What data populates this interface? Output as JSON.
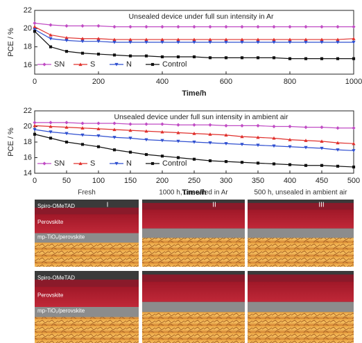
{
  "chart_data": [
    {
      "type": "line",
      "title": "Unsealed device under full sun intensity in Ar",
      "x_label": "Time/h",
      "y_label": "PCE / %",
      "x": [
        0,
        50,
        100,
        150,
        200,
        250,
        300,
        350,
        400,
        450,
        500,
        550,
        600,
        650,
        700,
        750,
        800,
        850,
        900,
        950,
        1000
      ],
      "xlim": [
        0,
        1000
      ],
      "xticks": [
        0,
        200,
        400,
        600,
        800,
        1000
      ],
      "ylim": [
        15,
        22
      ],
      "yticks": [
        16,
        18,
        20,
        22
      ],
      "series": [
        {
          "name": "SN",
          "color": "#c04cc4",
          "marker": "diamond",
          "values": [
            20.6,
            20.4,
            20.3,
            20.3,
            20.3,
            20.2,
            20.2,
            20.2,
            20.2,
            20.2,
            20.2,
            20.2,
            20.2,
            20.2,
            20.2,
            20.2,
            20.2,
            20.2,
            20.2,
            20.2,
            20.2
          ]
        },
        {
          "name": "S",
          "color": "#e0302c",
          "marker": "triangle-up",
          "values": [
            20.2,
            19.3,
            19.0,
            18.9,
            18.9,
            18.8,
            18.8,
            18.8,
            18.8,
            18.8,
            18.8,
            18.8,
            18.8,
            18.8,
            18.8,
            18.8,
            18.8,
            18.8,
            18.8,
            18.8,
            18.9
          ]
        },
        {
          "name": "N",
          "color": "#2f4fd0",
          "marker": "triangle-down",
          "values": [
            19.9,
            18.9,
            18.7,
            18.6,
            18.6,
            18.5,
            18.5,
            18.5,
            18.5,
            18.5,
            18.5,
            18.5,
            18.5,
            18.5,
            18.5,
            18.5,
            18.5,
            18.5,
            18.5,
            18.5,
            18.5
          ]
        },
        {
          "name": "Control",
          "color": "#111111",
          "marker": "square",
          "values": [
            19.7,
            18.0,
            17.5,
            17.3,
            17.2,
            17.1,
            17.0,
            17.0,
            16.9,
            16.9,
            16.9,
            16.8,
            16.8,
            16.8,
            16.8,
            16.8,
            16.7,
            16.7,
            16.7,
            16.7,
            16.7
          ]
        }
      ]
    },
    {
      "type": "line",
      "title": "Unsealed device under full sun intensity in ambient air",
      "x_label": "Time/h",
      "y_label": "PCE / %",
      "x": [
        0,
        25,
        50,
        75,
        100,
        125,
        150,
        175,
        200,
        225,
        250,
        275,
        300,
        325,
        350,
        375,
        400,
        425,
        450,
        475,
        500
      ],
      "xlim": [
        0,
        500
      ],
      "xticks": [
        0,
        50,
        100,
        150,
        200,
        250,
        300,
        350,
        400,
        450,
        500
      ],
      "ylim": [
        14,
        22
      ],
      "yticks": [
        14,
        16,
        18,
        20,
        22
      ],
      "series": [
        {
          "name": "SN",
          "color": "#c04cc4",
          "marker": "diamond",
          "values": [
            20.5,
            20.5,
            20.5,
            20.4,
            20.4,
            20.4,
            20.3,
            20.3,
            20.3,
            20.2,
            20.2,
            20.2,
            20.1,
            20.1,
            20.1,
            20.0,
            20.0,
            19.9,
            19.9,
            19.8,
            19.8
          ]
        },
        {
          "name": "S",
          "color": "#e0302c",
          "marker": "triangle-up",
          "values": [
            20.1,
            20.0,
            19.9,
            19.8,
            19.7,
            19.6,
            19.5,
            19.4,
            19.3,
            19.2,
            19.1,
            19.0,
            18.9,
            18.7,
            18.6,
            18.5,
            18.3,
            18.2,
            18.1,
            17.9,
            17.8
          ]
        },
        {
          "name": "N",
          "color": "#2f4fd0",
          "marker": "triangle-down",
          "values": [
            19.6,
            19.3,
            19.1,
            18.9,
            18.8,
            18.6,
            18.5,
            18.3,
            18.2,
            18.1,
            18.0,
            17.9,
            17.8,
            17.7,
            17.6,
            17.5,
            17.4,
            17.3,
            17.2,
            17.0,
            16.9
          ]
        },
        {
          "name": "Control",
          "color": "#111111",
          "marker": "square",
          "values": [
            19.0,
            18.5,
            18.0,
            17.7,
            17.4,
            17.0,
            16.7,
            16.4,
            16.2,
            16.0,
            15.8,
            15.6,
            15.5,
            15.4,
            15.3,
            15.2,
            15.1,
            15.0,
            15.0,
            14.9,
            14.8
          ]
        }
      ]
    }
  ],
  "image_panel": {
    "columns": [
      "Fresh",
      "1000 h, unsealed in Ar",
      "500 h, unsealed in ambient air"
    ],
    "panel_labels": [
      "I",
      "II",
      "III"
    ],
    "layer_labels": [
      "Spiro-OMeTAD",
      "Perovskite",
      "mp-TiO₂/perovskite"
    ]
  }
}
